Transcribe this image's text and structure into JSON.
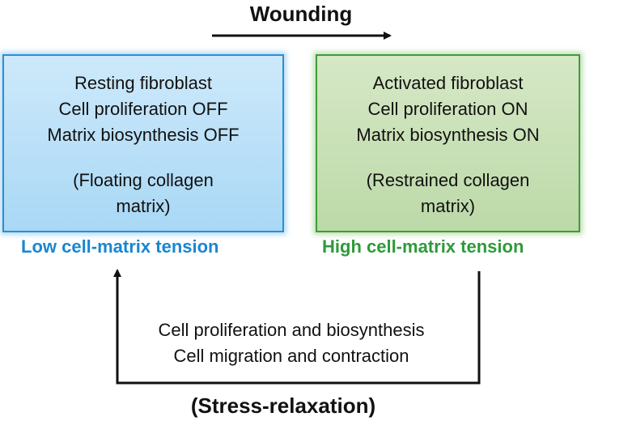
{
  "title": "Wounding",
  "left_box": {
    "lines": [
      "Resting fibroblast",
      "Cell proliferation OFF",
      "Matrix biosynthesis OFF"
    ],
    "note_lines": [
      "(Floating collagen",
      "matrix)"
    ],
    "tension_label": "Low cell-matrix tension",
    "color": "#1a86d0"
  },
  "right_box": {
    "lines": [
      "Activated fibroblast",
      "Cell proliferation ON",
      "Matrix biosynthesis ON"
    ],
    "note_lines": [
      "(Restrained collagen",
      "matrix)"
    ],
    "tension_label": "High cell-matrix tension",
    "color": "#2e9a3a"
  },
  "return_path": {
    "lines": [
      "Cell proliferation and biosynthesis",
      "Cell migration and contraction"
    ],
    "label": "(Stress-relaxation)"
  }
}
